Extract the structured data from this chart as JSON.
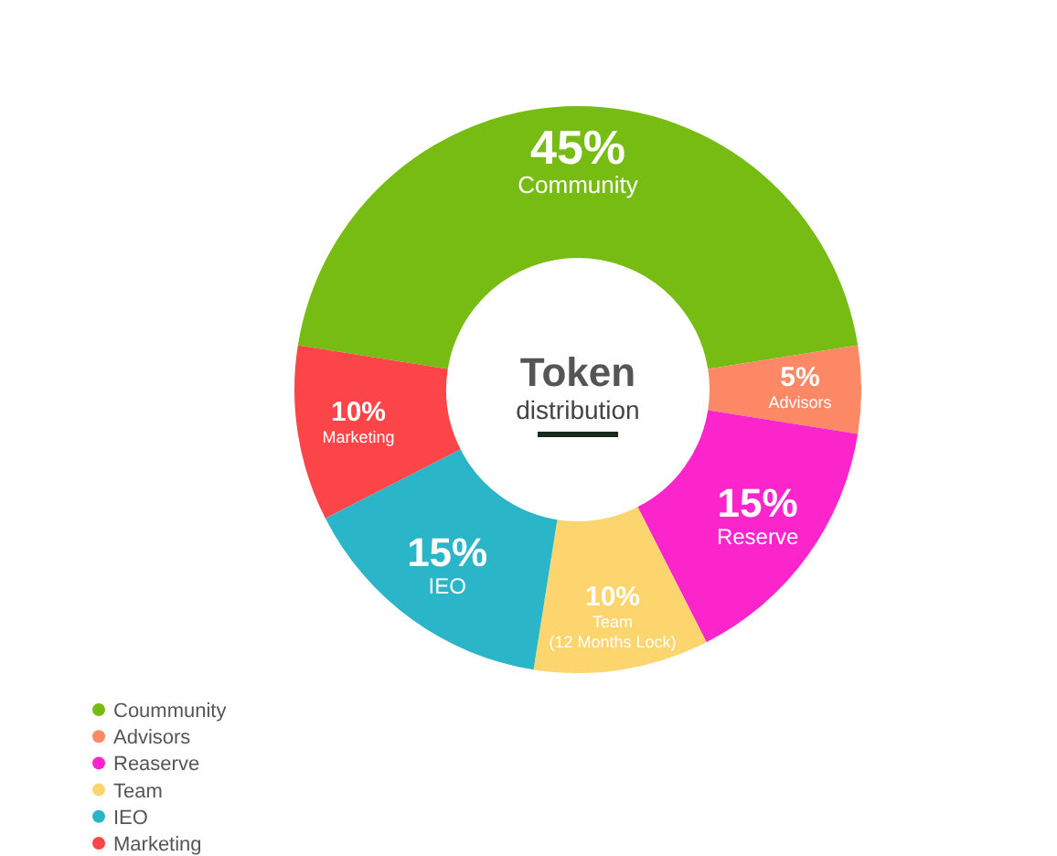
{
  "chart_data": {
    "type": "donut",
    "title": "Token",
    "subtitle": "distribution",
    "categories": [
      "Coummunity",
      "Advisors",
      "Reaserve",
      "Team",
      "IEO",
      "Marketing"
    ],
    "values": [
      45,
      5,
      15,
      10,
      15,
      10
    ],
    "colors": [
      "#76bc12",
      "#fc8866",
      "#fc25cc",
      "#fcd56e",
      "#2bb5c8",
      "#fc4548"
    ],
    "value_labels": [
      "45%",
      "5%",
      "15%",
      "10%",
      "15%",
      "10%"
    ],
    "annotations": [
      "Community",
      "Advisors",
      "Reserve",
      "Team\n(12 Months Lock)",
      "IEO",
      "Marketing"
    ],
    "legend": "bottom left"
  }
}
